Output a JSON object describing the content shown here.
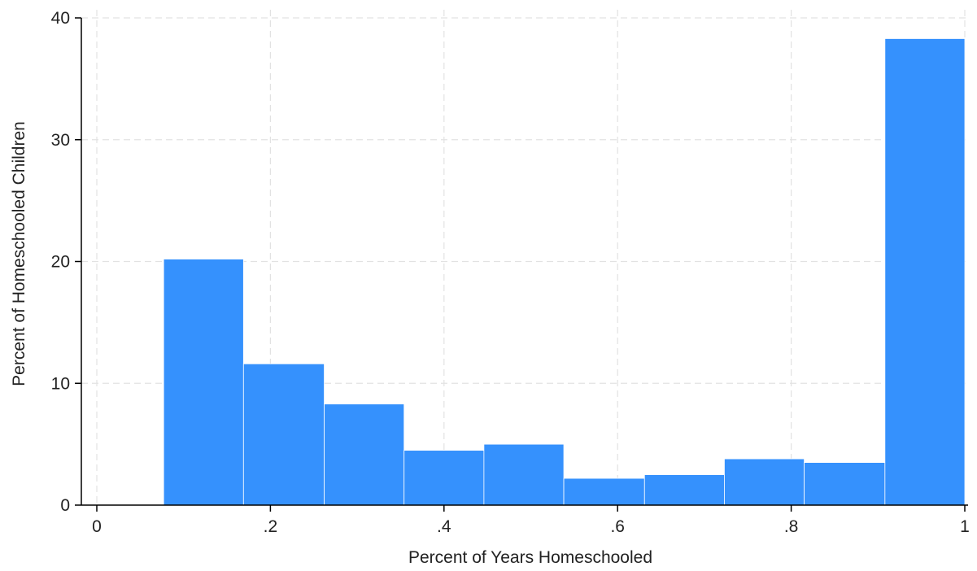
{
  "chart_data": {
    "type": "bar",
    "xlabel": "Percent of Years Homeschooled",
    "ylabel": "Percent of Homeschooled Children",
    "xlim": [
      -0.02,
      1.0
    ],
    "ylim": [
      0,
      40
    ],
    "x_ticks": [
      0,
      0.2,
      0.4,
      0.6,
      0.8,
      1
    ],
    "x_tick_labels": [
      "0",
      ".2",
      ".4",
      ".6",
      ".8",
      "1"
    ],
    "y_ticks": [
      0,
      10,
      20,
      30,
      40
    ],
    "y_tick_labels": [
      "0",
      "10",
      "20",
      "30",
      "40"
    ],
    "grid": true,
    "bar_color": "#3591fd",
    "bins": [
      {
        "x0": 0.077,
        "x1": 0.169,
        "value": 20.2
      },
      {
        "x0": 0.169,
        "x1": 0.262,
        "value": 11.6
      },
      {
        "x0": 0.262,
        "x1": 0.354,
        "value": 8.3
      },
      {
        "x0": 0.354,
        "x1": 0.446,
        "value": 4.5
      },
      {
        "x0": 0.446,
        "x1": 0.538,
        "value": 5.0
      },
      {
        "x0": 0.538,
        "x1": 0.631,
        "value": 2.2
      },
      {
        "x0": 0.631,
        "x1": 0.723,
        "value": 2.5
      },
      {
        "x0": 0.723,
        "x1": 0.815,
        "value": 3.8
      },
      {
        "x0": 0.815,
        "x1": 0.908,
        "value": 3.5
      },
      {
        "x0": 0.908,
        "x1": 1.0,
        "value": 38.3
      }
    ]
  }
}
